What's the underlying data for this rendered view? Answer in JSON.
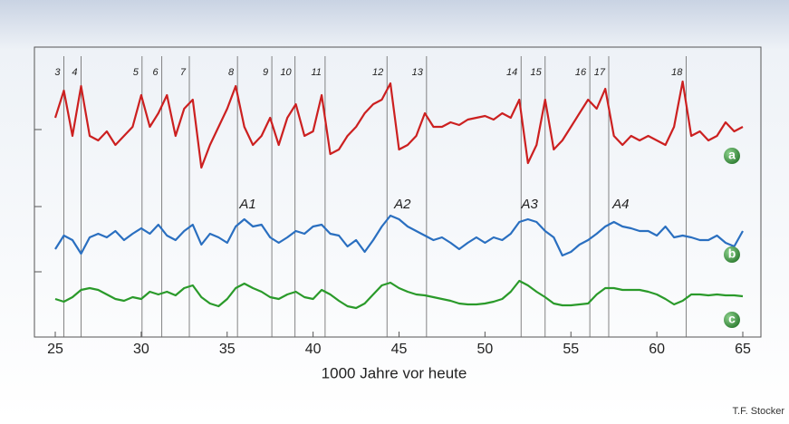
{
  "chart_data": {
    "type": "line",
    "xlabel": "1000 Jahre vor heute",
    "credit": "T.F. Stocker",
    "xlim": [
      25,
      65
    ],
    "xticks": [
      25,
      30,
      35,
      40,
      45,
      50,
      55,
      60,
      65
    ],
    "ylim": [
      0,
      315
    ],
    "x": [
      25,
      25.5,
      26,
      26.5,
      27,
      27.5,
      28,
      28.5,
      29,
      29.5,
      30,
      30.5,
      31,
      31.5,
      32,
      32.5,
      33,
      33.5,
      34,
      34.5,
      35,
      35.5,
      36,
      36.5,
      37,
      37.5,
      38,
      38.5,
      39,
      39.5,
      40,
      40.5,
      41,
      41.5,
      42,
      42.5,
      43,
      43.5,
      44,
      44.5,
      45,
      45.5,
      46,
      46.5,
      47,
      47.5,
      48,
      48.5,
      49,
      49.5,
      50,
      50.5,
      51,
      51.5,
      52,
      52.5,
      53,
      53.5,
      54,
      54.5,
      55,
      55.5,
      56,
      56.5,
      57,
      57.5,
      58,
      58.5,
      59,
      59.5,
      60,
      60.5,
      61,
      61.5,
      62,
      62.5,
      63,
      63.5,
      64,
      64.5,
      65
    ],
    "series": [
      {
        "name": "a",
        "color": "#cc2020",
        "values": [
          240,
          270,
          220,
          275,
          220,
          215,
          225,
          210,
          220,
          230,
          265,
          230,
          245,
          265,
          220,
          250,
          260,
          185,
          210,
          230,
          250,
          275,
          230,
          210,
          220,
          240,
          210,
          240,
          255,
          220,
          225,
          265,
          200,
          205,
          220,
          230,
          245,
          255,
          260,
          278,
          205,
          210,
          220,
          245,
          230,
          230,
          235,
          232,
          238,
          240,
          242,
          238,
          245,
          240,
          260,
          190,
          210,
          260,
          205,
          215,
          230,
          245,
          260,
          250,
          272,
          220,
          210,
          220,
          215,
          220,
          215,
          210,
          230,
          280,
          220,
          225,
          215,
          220,
          235,
          225,
          230
        ]
      },
      {
        "name": "b",
        "color": "#2a6fc0",
        "values": [
          95,
          110,
          105,
          90,
          108,
          112,
          108,
          115,
          105,
          112,
          118,
          112,
          122,
          110,
          105,
          115,
          122,
          100,
          112,
          108,
          102,
          120,
          128,
          120,
          122,
          108,
          102,
          108,
          115,
          112,
          120,
          122,
          112,
          110,
          98,
          105,
          92,
          105,
          120,
          132,
          128,
          120,
          115,
          110,
          105,
          108,
          102,
          95,
          102,
          108,
          102,
          108,
          105,
          112,
          125,
          128,
          125,
          115,
          108,
          88,
          92,
          100,
          105,
          112,
          120,
          125,
          120,
          118,
          115,
          115,
          110,
          120,
          108,
          110,
          108,
          105,
          105,
          110,
          102,
          98,
          115
        ]
      },
      {
        "name": "c",
        "color": "#2a9a2a",
        "values": [
          40,
          37,
          42,
          50,
          52,
          50,
          45,
          40,
          38,
          42,
          40,
          48,
          45,
          48,
          44,
          52,
          55,
          42,
          35,
          32,
          40,
          52,
          57,
          52,
          48,
          42,
          40,
          45,
          48,
          42,
          40,
          50,
          45,
          38,
          32,
          30,
          35,
          45,
          55,
          58,
          52,
          48,
          45,
          44,
          42,
          40,
          38,
          35,
          34,
          34,
          35,
          37,
          40,
          48,
          60,
          55,
          48,
          42,
          35,
          33,
          33,
          34,
          35,
          45,
          52,
          52,
          50,
          50,
          50,
          48,
          45,
          40,
          34,
          38,
          45,
          45,
          44,
          45,
          44,
          44,
          43
        ]
      }
    ],
    "events": [
      {
        "label": "3",
        "x": 25.5
      },
      {
        "label": "4",
        "x": 26.5
      },
      {
        "label": "5",
        "x": 30.05
      },
      {
        "label": "6",
        "x": 31.2
      },
      {
        "label": "7",
        "x": 32.8
      },
      {
        "label": "8",
        "x": 35.6
      },
      {
        "label": "9",
        "x": 37.6
      },
      {
        "label": "10",
        "x": 38.95
      },
      {
        "label": "11",
        "x": 40.7
      },
      {
        "label": "12",
        "x": 44.3
      },
      {
        "label": "13",
        "x": 46.6
      },
      {
        "label": "14",
        "x": 52.1
      },
      {
        "label": "15",
        "x": 53.5
      },
      {
        "label": "16",
        "x": 56.1
      },
      {
        "label": "17",
        "x": 57.2
      },
      {
        "label": "18",
        "x": 61.7
      }
    ],
    "annotations": [
      {
        "text": "A1",
        "x": 36.2
      },
      {
        "text": "A2",
        "x": 45.2
      },
      {
        "text": "A3",
        "x": 52.6
      },
      {
        "text": "A4",
        "x": 57.9
      }
    ]
  }
}
